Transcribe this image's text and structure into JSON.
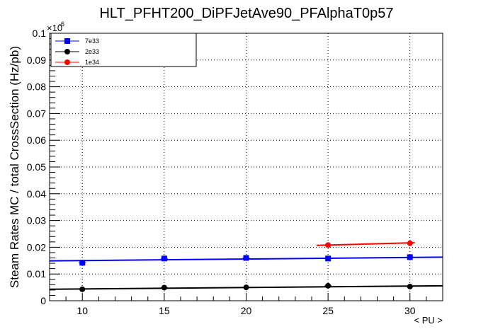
{
  "chart_data": {
    "type": "scatter",
    "title": "HLT_PFHT200_DiPFJetAve90_PFAlphaT0p57",
    "xlabel": "< PU >",
    "ylabel": "Steam Rates MC / total CrossSection (Hz/pb)",
    "y_multiplier": "×10",
    "y_exponent": "-6",
    "xlim": [
      8,
      32
    ],
    "ylim": [
      0,
      0.1
    ],
    "x_ticks": [
      10,
      15,
      20,
      25,
      30
    ],
    "y_ticks": [
      0.01,
      0.02,
      0.03,
      0.04,
      0.05,
      0.06,
      0.07,
      0.08,
      0.09,
      0.1
    ],
    "y_tick_labels": [
      "0.01",
      "0.02",
      "0.03",
      "0.04",
      "0.05",
      "0.06",
      "0.07",
      "0.08",
      "0.09",
      "0.1"
    ],
    "x_tick_labels": [
      "10",
      "15",
      "20",
      "25",
      "30"
    ],
    "grid": true,
    "legend_position": "top-left",
    "series": [
      {
        "name": "7e33",
        "color": "#0000ff",
        "marker": "square",
        "x": [
          10,
          15,
          20,
          25,
          30
        ],
        "y": [
          0.0142,
          0.0158,
          0.016,
          0.0158,
          0.0163
        ],
        "fit": {
          "x": [
            8,
            32
          ],
          "y": [
            0.0149,
            0.0163
          ]
        }
      },
      {
        "name": "2e33",
        "color": "#000000",
        "marker": "circle",
        "x": [
          10,
          15,
          20,
          25,
          30
        ],
        "y": [
          0.0043,
          0.0049,
          0.005,
          0.0056,
          0.0053
        ],
        "fit": {
          "x": [
            8,
            32
          ],
          "y": [
            0.0043,
            0.0056
          ]
        }
      },
      {
        "name": "1e34",
        "color": "#ff0000",
        "marker": "circle",
        "x": [
          25,
          30
        ],
        "y": [
          0.0208,
          0.0215
        ],
        "fit": {
          "x": [
            24.3,
            30.3
          ],
          "y": [
            0.0207,
            0.0217
          ]
        }
      }
    ]
  }
}
